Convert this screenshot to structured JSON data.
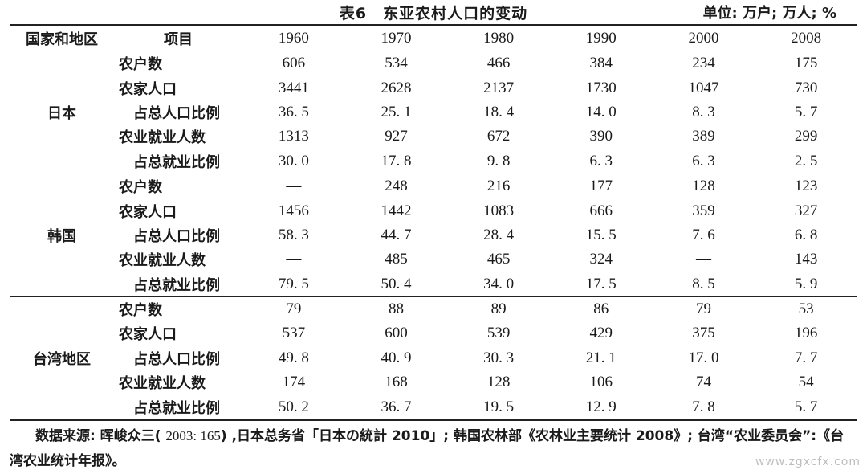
{
  "title": "表6　东亚农村人口的变动",
  "unit": "单位: 万户; 万人; %",
  "headers": {
    "country": "国家和地区",
    "item": "项目",
    "years": [
      "1960",
      "1970",
      "1980",
      "1990",
      "2000",
      "2008"
    ]
  },
  "groups": [
    {
      "country": "日本",
      "rows": [
        {
          "item": "农户数",
          "sub": false,
          "values": [
            "606",
            "534",
            "466",
            "384",
            "234",
            "175"
          ]
        },
        {
          "item": "农家人口",
          "sub": false,
          "values": [
            "3441",
            "2628",
            "2137",
            "1730",
            "1047",
            "730"
          ]
        },
        {
          "item": "占总人口比例",
          "sub": true,
          "values": [
            "36. 5",
            "25. 1",
            "18. 4",
            "14. 0",
            "8. 3",
            "5. 7"
          ]
        },
        {
          "item": "农业就业人数",
          "sub": false,
          "values": [
            "1313",
            "927",
            "672",
            "390",
            "389",
            "299"
          ]
        },
        {
          "item": "占总就业比例",
          "sub": true,
          "values": [
            "30. 0",
            "17. 8",
            "9. 8",
            "6. 3",
            "6. 3",
            "2. 5"
          ]
        }
      ]
    },
    {
      "country": "韩国",
      "rows": [
        {
          "item": "农户数",
          "sub": false,
          "values": [
            "—",
            "248",
            "216",
            "177",
            "128",
            "123"
          ]
        },
        {
          "item": "农家人口",
          "sub": false,
          "values": [
            "1456",
            "1442",
            "1083",
            "666",
            "359",
            "327"
          ]
        },
        {
          "item": "占总人口比例",
          "sub": true,
          "values": [
            "58. 3",
            "44. 7",
            "28. 4",
            "15. 5",
            "7. 6",
            "6. 8"
          ]
        },
        {
          "item": "农业就业人数",
          "sub": false,
          "values": [
            "—",
            "485",
            "465",
            "324",
            "—",
            "143"
          ]
        },
        {
          "item": "占总就业比例",
          "sub": true,
          "values": [
            "79. 5",
            "50. 4",
            "34. 0",
            "17. 5",
            "8. 5",
            "5. 9"
          ]
        }
      ]
    },
    {
      "country": "台湾地区",
      "rows": [
        {
          "item": "农户数",
          "sub": false,
          "values": [
            "79",
            "88",
            "89",
            "86",
            "79",
            "53"
          ]
        },
        {
          "item": "农家人口",
          "sub": false,
          "values": [
            "537",
            "600",
            "539",
            "429",
            "375",
            "196"
          ]
        },
        {
          "item": "占总人口比例",
          "sub": true,
          "values": [
            "49. 8",
            "40. 9",
            "30. 3",
            "21. 1",
            "17. 0",
            "7. 7"
          ]
        },
        {
          "item": "农业就业人数",
          "sub": false,
          "values": [
            "174",
            "168",
            "128",
            "106",
            "74",
            "54"
          ]
        },
        {
          "item": "占总就业比例",
          "sub": true,
          "values": [
            "50. 2",
            "36. 7",
            "19. 5",
            "12. 9",
            "7. 8",
            "5. 7"
          ]
        }
      ]
    }
  ],
  "source": {
    "label": "数据来源: 晖峻众三( ",
    "ref": "2003: 165",
    "text": ") ,日本总务省「日本の統計 2010」; 韩国农林部《农林业主要统计 2008》; 台湾“农业委员会”:《台湾农业统计年报》。"
  },
  "watermark": "www.zgxcfx.com"
}
